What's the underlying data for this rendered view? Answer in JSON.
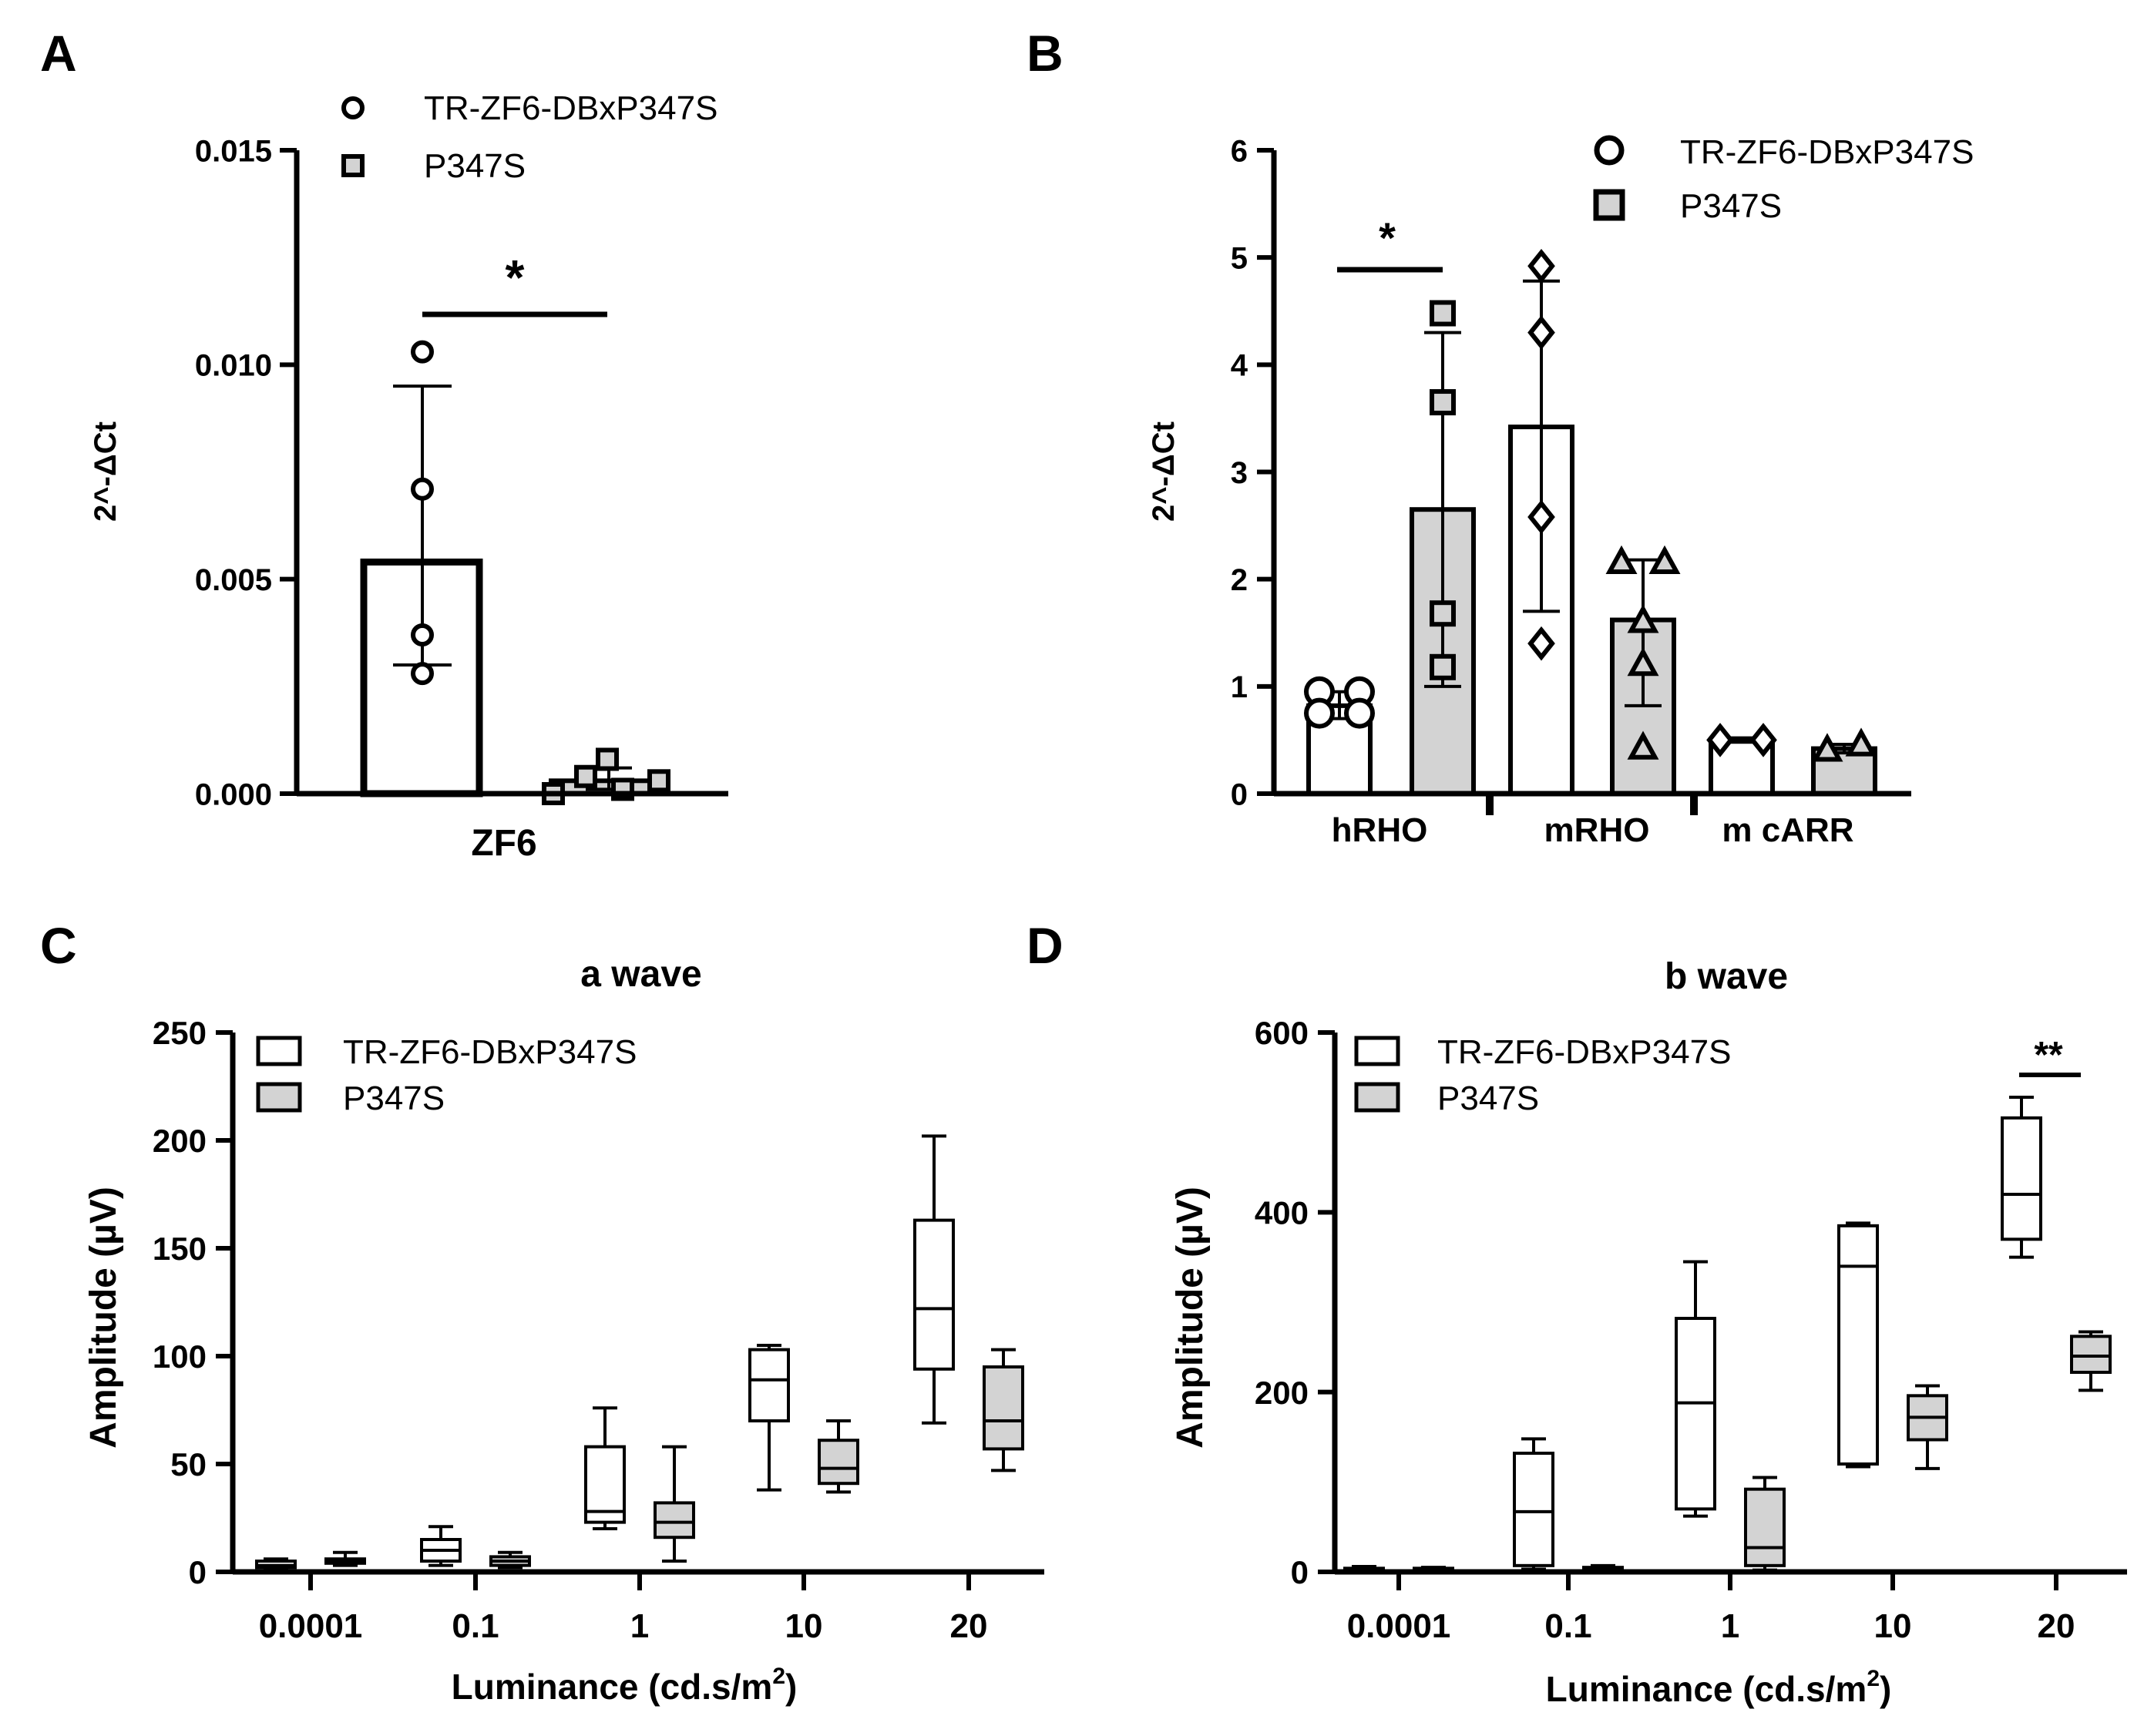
{
  "colors": {
    "ink": "#000000",
    "gray_fill": "#d3d3d3",
    "white_fill": "#ffffff"
  },
  "chart_data": [
    {
      "panel": "A",
      "type": "bar",
      "title": "",
      "xlabel": "ZF6",
      "ylabel": "2^-ΔCt",
      "ylim": [
        0,
        0.015
      ],
      "yticks": [
        "0.000",
        "0.005",
        "0.010",
        "0.015"
      ],
      "ytick_values": [
        0,
        0.005,
        0.01,
        0.015
      ],
      "legend": [
        "TR-ZF6-DBxP347S",
        "P347S"
      ],
      "significance": "*",
      "series": [
        {
          "name": "TR-ZF6-DBxP347S",
          "mean": 0.0054,
          "sd_high": 0.0095,
          "sd_low": 0.003,
          "points": [
            0.0103,
            0.0071,
            0.0037,
            0.0028
          ]
        },
        {
          "name": "P347S",
          "mean": 0.0003,
          "sd_high": 0.0006,
          "sd_low": 0.0001,
          "points": [
            0.0,
            0.0004,
            0.0008,
            0.0001,
            0.0003
          ]
        }
      ]
    },
    {
      "panel": "B",
      "type": "bar",
      "title": "",
      "xlabel": "",
      "ylabel": "2^-ΔCt",
      "ylim": [
        0,
        6
      ],
      "yticks": [
        "0",
        "1",
        "2",
        "3",
        "4",
        "5",
        "6"
      ],
      "ytick_values": [
        0,
        1,
        2,
        3,
        4,
        5,
        6
      ],
      "categories": [
        "hRHO",
        "mRHO",
        "m cARR"
      ],
      "legend": [
        "TR-ZF6-DBxP347S",
        "P347S"
      ],
      "significance": "*",
      "series": [
        {
          "name": "TR-ZF6-DBxP347S",
          "values": [
            {
              "mean": 0.82,
              "sd_high": 0.95,
              "sd_low": 0.7,
              "marker": "circle",
              "points": [
                0.95,
                0.95,
                0.75,
                0.75
              ]
            },
            {
              "mean": 3.42,
              "sd_high": 4.78,
              "sd_low": 1.7,
              "marker": "diamond",
              "points": [
                4.92,
                4.3,
                2.58,
                1.4
              ]
            },
            {
              "mean": 0.5,
              "sd_high": 0.52,
              "sd_low": 0.48,
              "marker": "diamond",
              "points": [
                0.5,
                0.5
              ]
            }
          ]
        },
        {
          "name": "P347S",
          "values": [
            {
              "mean": 2.65,
              "sd_high": 4.3,
              "sd_low": 1.0,
              "marker": "square",
              "points": [
                4.48,
                3.65,
                1.68,
                1.18
              ]
            },
            {
              "mean": 1.62,
              "sd_high": 2.18,
              "sd_low": 0.82,
              "marker": "triangle",
              "points": [
                2.15,
                2.15,
                1.6,
                1.2,
                0.42
              ]
            },
            {
              "mean": 0.42,
              "sd_high": 0.46,
              "sd_low": 0.38,
              "marker": "triangle",
              "points": [
                0.4,
                0.45
              ]
            }
          ]
        }
      ]
    },
    {
      "panel": "C",
      "type": "box",
      "title": "a wave",
      "xlabel": "Luminance (cd.s/m",
      "xlabel_sup": "2",
      "xlabel_close": ")",
      "ylabel": "Amplitude (µV)",
      "ylim": [
        0,
        250
      ],
      "yticks": [
        "0",
        "50",
        "100",
        "150",
        "200",
        "250"
      ],
      "ytick_values": [
        0,
        50,
        100,
        150,
        200,
        250
      ],
      "categories": [
        "0.0001",
        "0.1",
        "1",
        "10",
        "20"
      ],
      "legend": [
        "TR-ZF6-DBxP347S",
        "P347S"
      ],
      "series": [
        {
          "name": "TR-ZF6-DBxP347S",
          "boxes": [
            {
              "min": 1,
              "q1": 2,
              "median": 3,
              "q3": 5,
              "max": 6
            },
            {
              "min": 3,
              "q1": 5,
              "median": 10,
              "q3": 15,
              "max": 21
            },
            {
              "min": 20,
              "q1": 23,
              "median": 28,
              "q3": 58,
              "max": 76
            },
            {
              "min": 38,
              "q1": 70,
              "median": 89,
              "q3": 103,
              "max": 105
            },
            {
              "min": 69,
              "q1": 94,
              "median": 122,
              "q3": 163,
              "max": 202
            }
          ]
        },
        {
          "name": "P347S",
          "boxes": [
            {
              "min": 3,
              "q1": 4,
              "median": 5,
              "q3": 6,
              "max": 9
            },
            {
              "min": 2,
              "q1": 3,
              "median": 5,
              "q3": 7,
              "max": 9
            },
            {
              "min": 5,
              "q1": 16,
              "median": 23,
              "q3": 32,
              "max": 58
            },
            {
              "min": 37,
              "q1": 41,
              "median": 48,
              "q3": 61,
              "max": 70
            },
            {
              "min": 47,
              "q1": 57,
              "median": 70,
              "q3": 95,
              "max": 103
            }
          ]
        }
      ]
    },
    {
      "panel": "D",
      "type": "box",
      "title": "b wave",
      "xlabel": "Luminance (cd.s/m",
      "xlabel_sup": "2",
      "xlabel_close": ")",
      "ylabel": "Amplitude (µV)",
      "ylim": [
        0,
        600
      ],
      "yticks": [
        "0",
        "200",
        "400",
        "600"
      ],
      "ytick_values": [
        0,
        200,
        400,
        600
      ],
      "categories": [
        "0.0001",
        "0.1",
        "1",
        "10",
        "20"
      ],
      "legend": [
        "TR-ZF6-DBxP347S",
        "P347S"
      ],
      "significance": "**",
      "series": [
        {
          "name": "TR-ZF6-DBxP347S",
          "boxes": [
            {
              "min": 1,
              "q1": 2,
              "median": 3,
              "q3": 4,
              "max": 6
            },
            {
              "min": 3,
              "q1": 7,
              "median": 67,
              "q3": 132,
              "max": 148
            },
            {
              "min": 62,
              "q1": 70,
              "median": 188,
              "q3": 282,
              "max": 345
            },
            {
              "min": 117,
              "q1": 120,
              "median": 340,
              "q3": 385,
              "max": 388
            },
            {
              "min": 350,
              "q1": 370,
              "median": 420,
              "q3": 505,
              "max": 528
            }
          ]
        },
        {
          "name": "P347S",
          "boxes": [
            {
              "min": 1,
              "q1": 2,
              "median": 3,
              "q3": 4,
              "max": 5
            },
            {
              "min": 1,
              "q1": 2,
              "median": 3,
              "q3": 5,
              "max": 7
            },
            {
              "min": 2,
              "q1": 7,
              "median": 27,
              "q3": 92,
              "max": 105
            },
            {
              "min": 115,
              "q1": 147,
              "median": 172,
              "q3": 196,
              "max": 207
            },
            {
              "min": 202,
              "q1": 222,
              "median": 240,
              "q3": 262,
              "max": 267
            }
          ]
        }
      ]
    }
  ],
  "panel_letters": [
    "A",
    "B",
    "C",
    "D"
  ]
}
